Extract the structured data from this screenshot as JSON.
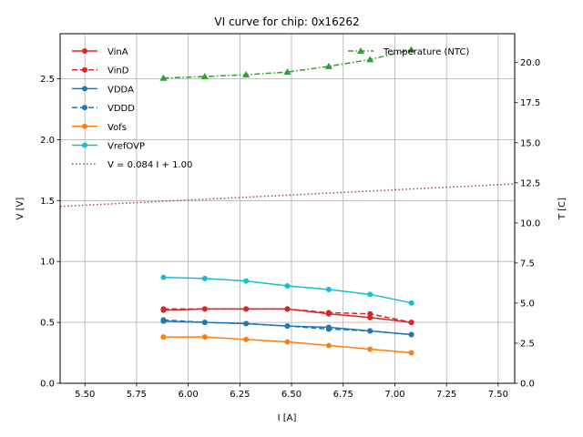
{
  "chart_data": {
    "type": "line",
    "title": "VI curve for chip: 0x16262",
    "xlabel": "I [A]",
    "ylabel": "V [V]",
    "y2label": "T [C]",
    "xlim": [
      5.38,
      7.58
    ],
    "ylim": [
      0.0,
      2.87
    ],
    "y2lim": [
      0.0,
      21.8
    ],
    "grid": true,
    "x_ticks": [
      5.5,
      5.75,
      6.0,
      6.25,
      6.5,
      6.75,
      7.0,
      7.25,
      7.5
    ],
    "x_tick_labels": [
      "5.50",
      "5.75",
      "6.00",
      "6.25",
      "6.50",
      "6.75",
      "7.00",
      "7.25",
      "7.50"
    ],
    "y_ticks": [
      0.0,
      0.5,
      1.0,
      1.5,
      2.0,
      2.5
    ],
    "y_tick_labels": [
      "0.0",
      "0.5",
      "1.0",
      "1.5",
      "2.0",
      "2.5"
    ],
    "y2_ticks": [
      0.0,
      2.5,
      5.0,
      7.5,
      10.0,
      12.5,
      15.0,
      17.5,
      20.0
    ],
    "y2_tick_labels": [
      "0.0",
      "2.5",
      "5.0",
      "7.5",
      "10.0",
      "12.5",
      "15.0",
      "17.5",
      "20.0"
    ],
    "x": [
      5.88,
      6.08,
      6.28,
      6.48,
      6.68,
      6.88,
      7.08
    ],
    "series": [
      {
        "name": "VinA",
        "axis": "left",
        "color": "#d62728",
        "linestyle": "solid",
        "marker": "circle",
        "values": [
          0.6,
          0.61,
          0.61,
          0.61,
          0.57,
          0.54,
          0.5
        ]
      },
      {
        "name": "VinD",
        "axis": "left",
        "color": "#d62728",
        "linestyle": "dashed",
        "marker": "circle",
        "values": [
          0.61,
          0.61,
          0.61,
          0.61,
          0.58,
          0.57,
          0.5
        ]
      },
      {
        "name": "VDDA",
        "axis": "left",
        "color": "#1f77b4",
        "linestyle": "solid",
        "marker": "circle",
        "values": [
          0.51,
          0.5,
          0.49,
          0.47,
          0.46,
          0.43,
          0.4
        ]
      },
      {
        "name": "VDDD",
        "axis": "left",
        "color": "#1f77b4",
        "linestyle": "dashed",
        "marker": "circle",
        "values": [
          0.52,
          0.5,
          0.49,
          0.47,
          0.445,
          0.43,
          0.4
        ]
      },
      {
        "name": "Vofs",
        "axis": "left",
        "color": "#ff7f0e",
        "linestyle": "solid",
        "marker": "circle",
        "values": [
          0.38,
          0.38,
          0.36,
          0.34,
          0.31,
          0.28,
          0.25
        ]
      },
      {
        "name": "VrefOVP",
        "axis": "left",
        "color": "#17becf",
        "linestyle": "solid",
        "marker": "circle",
        "values": [
          0.87,
          0.86,
          0.84,
          0.8,
          0.77,
          0.73,
          0.66
        ]
      },
      {
        "name": "Temperature (NTC)",
        "axis": "right",
        "color": "#2ca02c",
        "linestyle": "dashdot",
        "marker": "triangle",
        "values": [
          19.03,
          19.13,
          19.24,
          19.41,
          19.76,
          20.19,
          20.8
        ]
      }
    ],
    "fit_line": {
      "name": "V = 0.084 I + 1.00",
      "slope": 0.084,
      "intercept": 1.0,
      "color": "#8c564b",
      "linestyle": "dotted"
    },
    "legend_left": {
      "placement": "upper-left",
      "entries": [
        "VinA",
        "VinD",
        "VDDA",
        "VDDD",
        "Vofs",
        "VrefOVP",
        "V = 0.084 I + 1.00"
      ]
    },
    "legend_right": {
      "placement": "upper-right",
      "entries": [
        "Temperature (NTC)"
      ]
    }
  }
}
